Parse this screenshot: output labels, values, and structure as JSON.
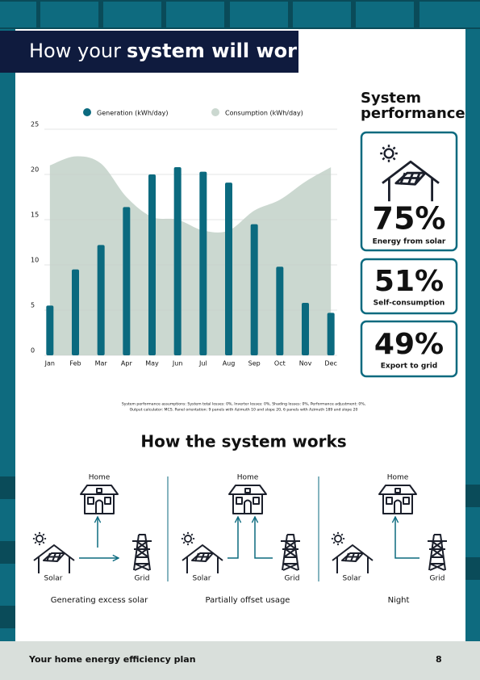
{
  "header": {
    "title_regular": "How your",
    "title_bold": "system will work"
  },
  "chart_data": {
    "type": "bar",
    "categories": [
      "Jan",
      "Feb",
      "Mar",
      "Apr",
      "May",
      "Jun",
      "Jul",
      "Aug",
      "Sep",
      "Oct",
      "Nov",
      "Dec"
    ],
    "series": [
      {
        "name": "Generation (kWh/day)",
        "type": "bar",
        "color": "#0b6a7f",
        "values": [
          5.5,
          9.5,
          12.2,
          16.4,
          20,
          20.8,
          20.3,
          19.1,
          14.5,
          9.8,
          5.8,
          4.7
        ]
      },
      {
        "name": "Consumption (kWh/day)",
        "type": "area",
        "color": "#cbd8d0",
        "values": [
          21,
          22,
          21.2,
          17.5,
          15.3,
          15,
          13.8,
          13.8,
          16,
          17.2,
          19.2,
          20.8
        ]
      }
    ],
    "ylim": [
      0,
      25
    ],
    "yticks": [
      0,
      5,
      10,
      15,
      20,
      25
    ],
    "grid": true,
    "legend": "top"
  },
  "performance": {
    "title": "System performance",
    "cards": [
      {
        "value": "75%",
        "label": "Energy from solar"
      },
      {
        "value": "51%",
        "label": "Self-consumption"
      },
      {
        "value": "49%",
        "label": "Export to grid"
      }
    ]
  },
  "assumptions": [
    "System performance assumptions: System total losses: 0%, Inverter losses: 0%, Shading losses: 0%, Performance adjustment: 0%,",
    "Output calculator: MCS. Panel orientation: 9 panels with Azimuth 10 and slope 20, 6 panels with Azimuth 189 and slope 20"
  ],
  "how_it_works": {
    "title": "How the system works",
    "panels": [
      {
        "home": "Home",
        "solar": "Solar",
        "grid": "Grid",
        "caption": "Generating excess solar"
      },
      {
        "home": "Home",
        "solar": "Solar",
        "grid": "Grid",
        "caption": "Partially offset usage"
      },
      {
        "home": "Home",
        "solar": "Solar",
        "grid": "Grid",
        "caption": "Night"
      }
    ]
  },
  "footer": {
    "title": "Your home energy efficiency plan",
    "page": "8"
  }
}
